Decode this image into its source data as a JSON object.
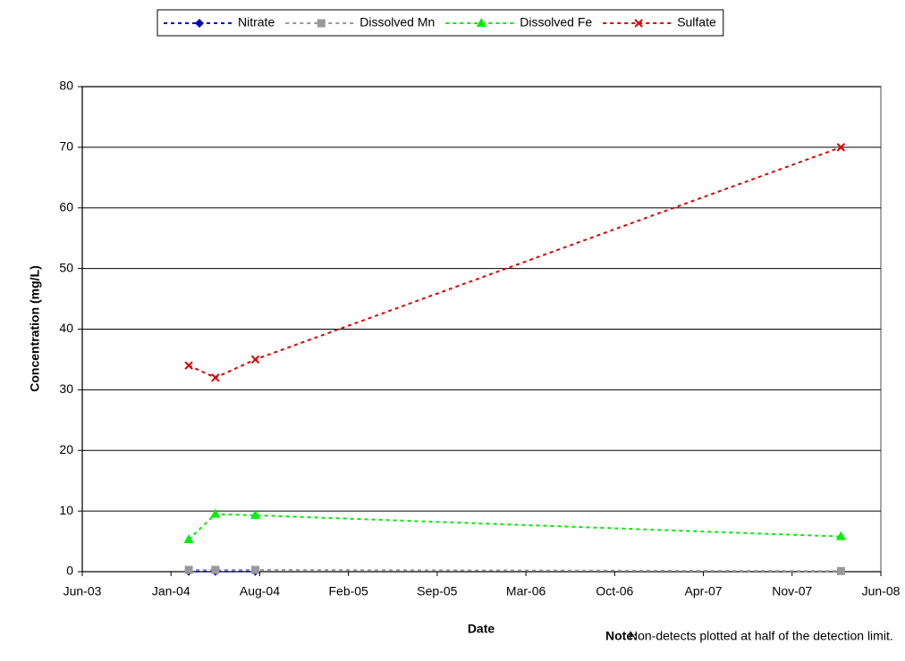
{
  "chart_data": {
    "type": "line",
    "x_label": "Date",
    "y_label": "Concentration (mg/L)",
    "note_label": "Note:",
    "note": "Non-detects plotted at half of the detection limit.",
    "x": [
      "Feb-04",
      "Apr-04",
      "Jul-04",
      "Mar-08"
    ],
    "series": [
      {
        "name": "Nitrate",
        "color": "#0000cc",
        "marker": "diamond",
        "values": [
          0.05,
          0.05,
          0.05,
          null
        ]
      },
      {
        "name": "Dissolved Mn",
        "color": "#999999",
        "marker": "square",
        "values": [
          0.3,
          0.3,
          0.3,
          0.1
        ]
      },
      {
        "name": "Dissolved Fe",
        "color": "#00ee00",
        "marker": "triangle",
        "values": [
          5.3,
          9.5,
          9.3,
          5.8
        ]
      },
      {
        "name": "Sulfate",
        "color": "#dd0000",
        "marker": "x",
        "values": [
          34,
          32,
          35,
          70
        ]
      }
    ],
    "xlim": [
      "Jun-03",
      "Jun-08"
    ],
    "xticks": [
      "Jun-03",
      "Jan-04",
      "Aug-04",
      "Feb-05",
      "Sep-05",
      "Mar-06",
      "Oct-06",
      "Apr-07",
      "Nov-07",
      "Jun-08"
    ],
    "ylim": [
      0,
      80
    ],
    "yticks": [
      0,
      10,
      20,
      30,
      40,
      50,
      60,
      70,
      80
    ],
    "grid": true,
    "legend": "top"
  }
}
